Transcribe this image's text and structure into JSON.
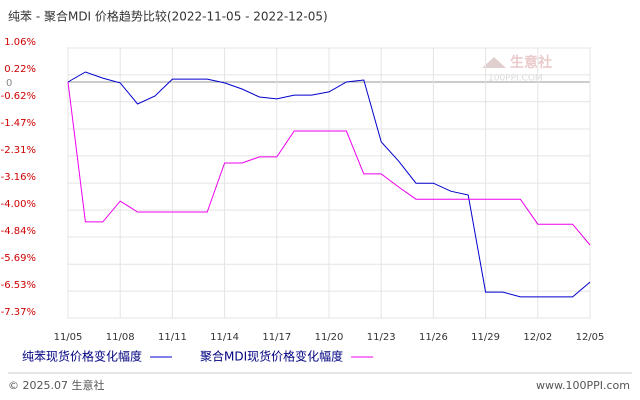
{
  "chart_data": {
    "type": "line",
    "title": "纯苯 - 聚合MDI 价格趋势比较(2022-11-05 - 2022-12-05)",
    "categories": [
      "11/05",
      null,
      null,
      "11/08",
      null,
      null,
      "11/11",
      null,
      null,
      "11/14",
      null,
      null,
      "11/17",
      null,
      null,
      "11/20",
      null,
      null,
      "11/23",
      null,
      null,
      "11/26",
      null,
      null,
      "11/29",
      null,
      null,
      "12/02",
      null,
      null,
      "12/05"
    ],
    "series": [
      {
        "name": "纯苯现货价格变化幅度",
        "color": "#0000cc",
        "values": [
          0,
          0.31,
          0.12,
          -0.03,
          -0.69,
          -0.44,
          0.09,
          0.09,
          0.09,
          -0.03,
          -0.22,
          -0.47,
          -0.53,
          -0.41,
          -0.41,
          -0.31,
          0,
          0.06,
          -1.87,
          -2.47,
          -3.16,
          -3.16,
          -3.41,
          -3.53,
          -6.56,
          -6.56,
          -6.71,
          -6.71,
          -6.71,
          -6.71,
          -6.25
        ]
      },
      {
        "name": "聚合MDI现货价格变化幅度",
        "color": "#ee00ee",
        "values": [
          0,
          -4.37,
          -4.37,
          -3.72,
          -4.06,
          -4.06,
          -4.06,
          -4.06,
          -4.06,
          -2.53,
          -2.53,
          -2.34,
          -2.34,
          -1.53,
          -1.53,
          -1.53,
          -1.53,
          -2.87,
          -2.87,
          -3.28,
          -3.66,
          -3.66,
          -3.66,
          -3.66,
          -3.66,
          -3.66,
          -3.66,
          -4.44,
          -4.44,
          -4.44,
          -5.09
        ]
      }
    ],
    "ylim": [
      -7.37,
      1.06
    ],
    "yticks": [
      {
        "value": 1.06,
        "label": "1.06%"
      },
      {
        "value": 0.22,
        "label": "0.22%"
      },
      0,
      {
        "value": -0.62,
        "label": "-0.62%"
      },
      {
        "value": -1.47,
        "label": "-1.47%"
      },
      {
        "value": -2.31,
        "label": "-2.31%"
      },
      {
        "value": -3.16,
        "label": "-3.16%"
      },
      {
        "value": -4.0,
        "label": "-4.00%"
      },
      {
        "value": -4.84,
        "label": "-4.84%"
      },
      {
        "value": -5.69,
        "label": "-5.69%"
      },
      {
        "value": -6.53,
        "label": "-6.53%"
      },
      {
        "value": -7.37,
        "label": "-7.37%"
      }
    ],
    "grid": true
  },
  "watermark": {
    "name": "生意社",
    "site": "100PPI.COM"
  },
  "footer": {
    "copyright": "© 2025.07 生意社",
    "url": "www.100PPI.com"
  }
}
